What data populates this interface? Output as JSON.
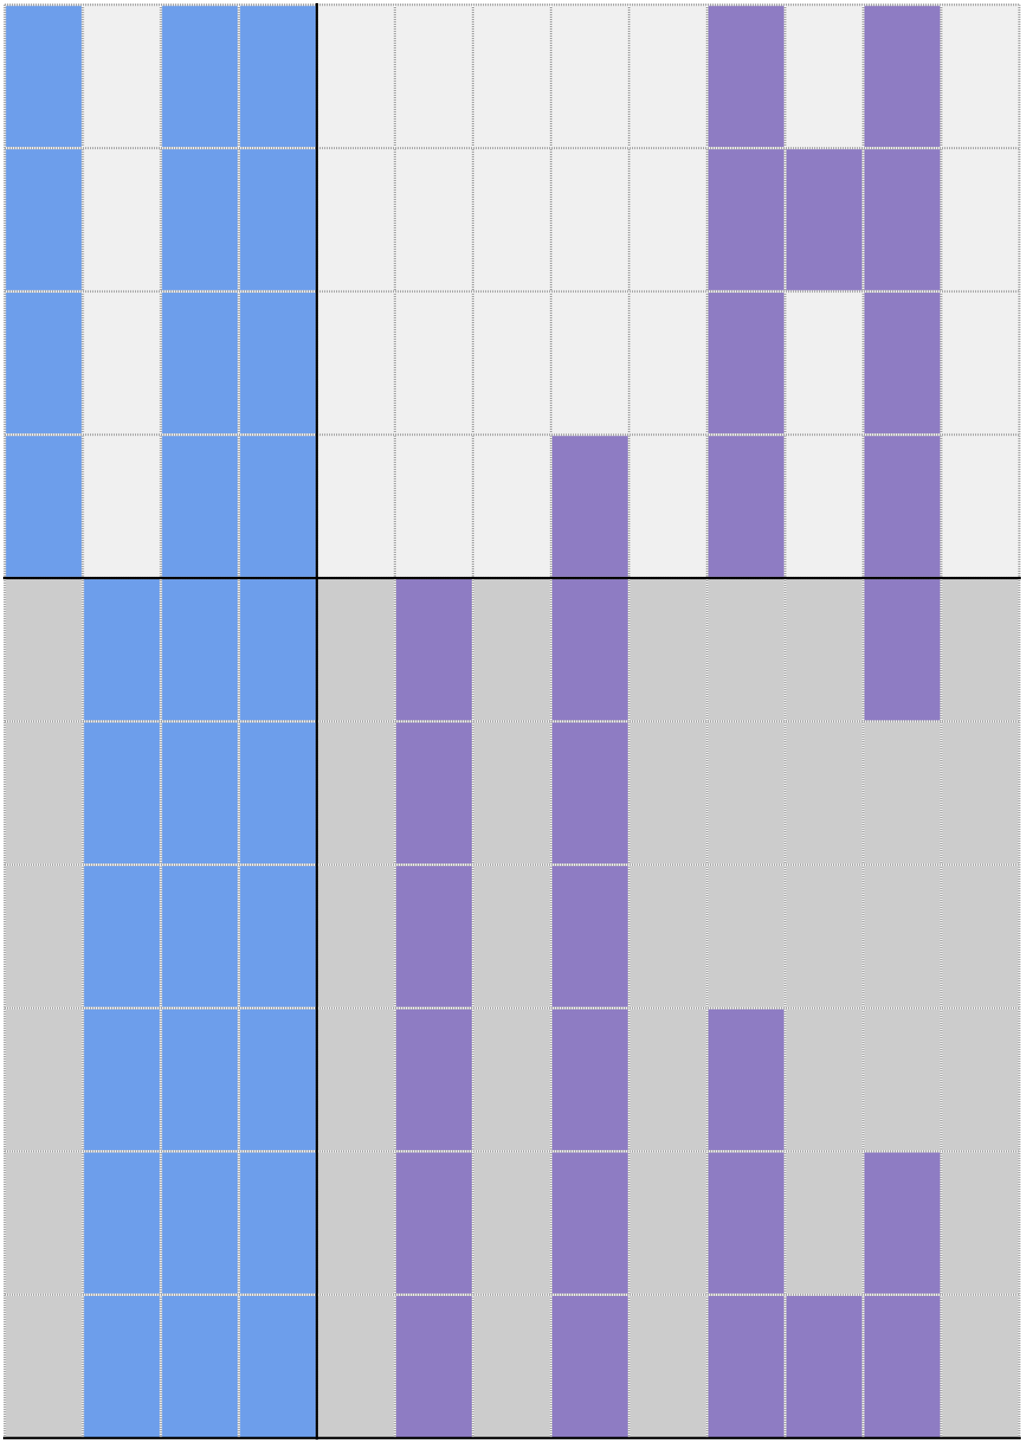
{
  "grid": {
    "columns": 13,
    "divider_column": 4,
    "divider_row": 4,
    "colors": {
      "0": [
        "#f0f0f0",
        "#cccccc"
      ],
      "1": "#6d9eeb",
      "2": "#8e7cc3"
    },
    "rows": [
      [
        1,
        0,
        1,
        1,
        0,
        0,
        0,
        0,
        0,
        2,
        0,
        2,
        0
      ],
      [
        1,
        0,
        1,
        1,
        0,
        0,
        0,
        0,
        0,
        2,
        2,
        2,
        0
      ],
      [
        1,
        0,
        1,
        1,
        0,
        0,
        0,
        0,
        0,
        2,
        0,
        2,
        0
      ],
      [
        1,
        0,
        1,
        1,
        0,
        0,
        0,
        2,
        0,
        2,
        0,
        2,
        0
      ],
      [
        0,
        1,
        1,
        1,
        0,
        2,
        0,
        2,
        0,
        0,
        0,
        2,
        0
      ],
      [
        0,
        1,
        1,
        1,
        0,
        2,
        0,
        2,
        0,
        0,
        0,
        0,
        0
      ],
      [
        0,
        1,
        1,
        1,
        0,
        2,
        0,
        2,
        0,
        0,
        0,
        0,
        0
      ],
      [
        0,
        1,
        1,
        1,
        0,
        2,
        0,
        2,
        0,
        2,
        0,
        0,
        0
      ],
      [
        0,
        1,
        1,
        1,
        0,
        2,
        0,
        2,
        0,
        2,
        0,
        2,
        0
      ],
      [
        0,
        1,
        1,
        1,
        0,
        2,
        0,
        2,
        0,
        2,
        2,
        2,
        0
      ]
    ]
  }
}
